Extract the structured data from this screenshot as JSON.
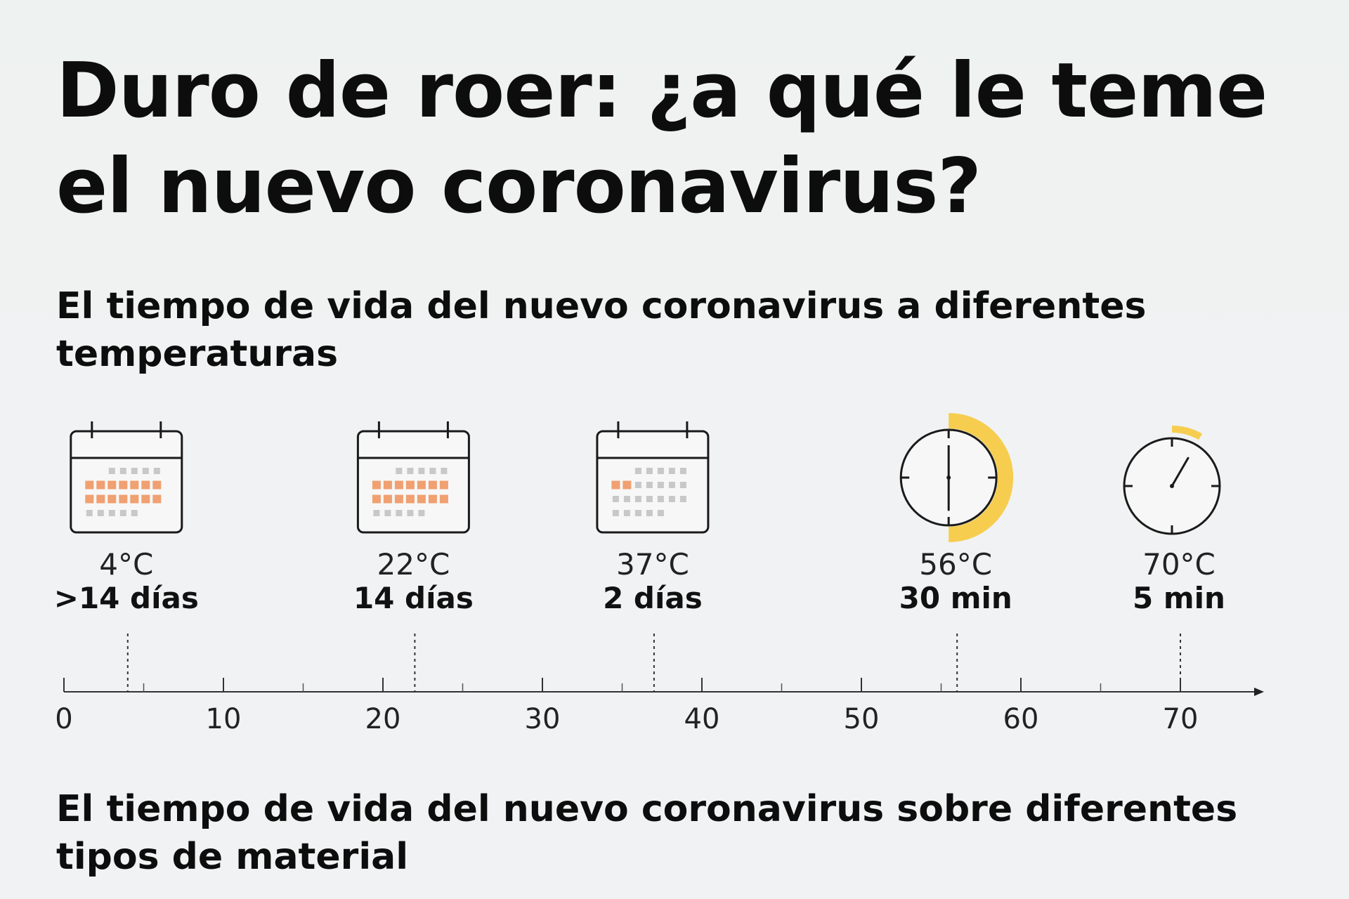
{
  "title": "Duro de roer: ¿a qué le teme\nel nuevo coronavirus?",
  "subtitle_temperatures": "El tiempo de vida del nuevo coronavirus a diferentes temperaturas",
  "subtitle_materials": "El tiempo de vida del nuevo coronavirus sobre diferentes tipos de material",
  "colors": {
    "accent_days": "#f0a071",
    "accent_time": "#f6cd4f",
    "ink": "#111111",
    "muted_dots": "#c8c8c8"
  },
  "chart_data": {
    "type": "scatter",
    "x_axis": {
      "range": [
        0,
        75
      ],
      "ticks": [
        0,
        10,
        20,
        30,
        40,
        50,
        60,
        70
      ],
      "minor_ticks": [
        5,
        15,
        25,
        35,
        45,
        55,
        65
      ],
      "arrow": true,
      "unit": ""
    },
    "points": [
      {
        "x": 4,
        "temp_label": "4°C",
        "duration_label": ">14 días",
        "icon": "calendar-icon",
        "highlight_days": 14
      },
      {
        "x": 22,
        "temp_label": "22°C",
        "duration_label": "14 días",
        "icon": "calendar-icon",
        "highlight_days": 14
      },
      {
        "x": 37,
        "temp_label": "37°C",
        "duration_label": "2 días",
        "icon": "calendar-icon",
        "highlight_days": 2
      },
      {
        "x": 56,
        "temp_label": "56°C",
        "duration_label": "30 min",
        "icon": "clock-icon",
        "minutes": 30
      },
      {
        "x": 70,
        "temp_label": "70°C",
        "duration_label": "5 min",
        "icon": "clock-icon",
        "minutes": 5
      }
    ]
  }
}
